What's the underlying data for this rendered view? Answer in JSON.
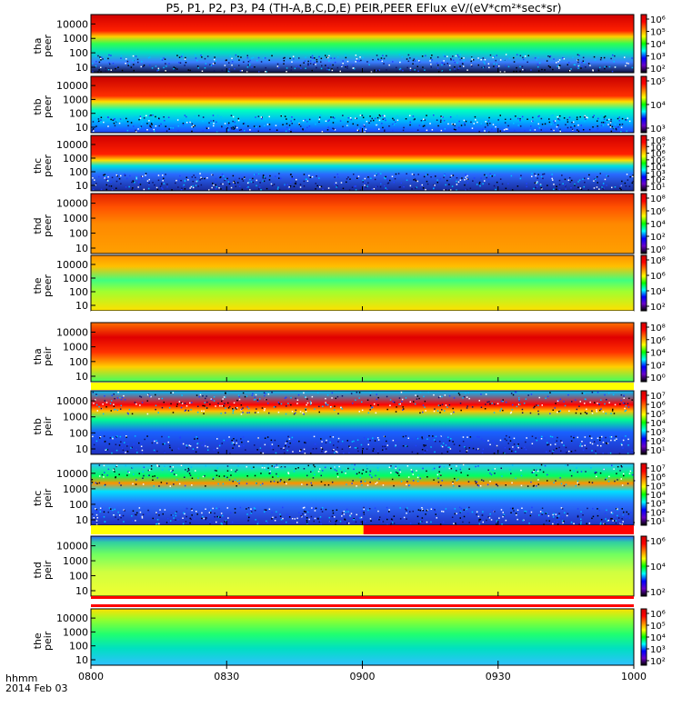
{
  "title": "P5, P1, P2, P3, P4 (TH-A,B,C,D,E) PEIR,PEER EFlux eV/(eV*cm²*sec*sr)",
  "footer": {
    "label": "hhmm",
    "date": "2014 Feb 03"
  },
  "chart_data": {
    "type": "heatmap",
    "x_ticks": [
      "0800",
      "0830",
      "0900",
      "0930",
      "1000"
    ],
    "x_range": [
      "08:00",
      "10:00"
    ],
    "y_scale": "log",
    "y_ticks": [
      "10",
      "100",
      "1000",
      "10000"
    ],
    "z_scale": "log",
    "colormap": [
      "#000000",
      "#6a00c8",
      "#0000ff",
      "#00ffff",
      "#00ff00",
      "#ffff00",
      "#ff8000",
      "#ff0000",
      "#d00000"
    ],
    "panels": [
      {
        "probe": "tha",
        "species": "peer",
        "label_top": "tha",
        "label_bottom": "peer",
        "y_ticks": [
          "10",
          "100",
          "1000",
          "10000"
        ],
        "color_ticks": [
          "10⁶",
          "10⁵",
          "10⁴",
          "10³",
          "10²"
        ]
      },
      {
        "probe": "thb",
        "species": "peer",
        "label_top": "thb",
        "label_bottom": "peer",
        "y_ticks": [
          "10",
          "100",
          "1000",
          "10000"
        ],
        "color_ticks": [
          "10⁵",
          "10⁴",
          "10³"
        ]
      },
      {
        "probe": "thc",
        "species": "peer",
        "label_top": "thc",
        "label_bottom": "peer",
        "y_ticks": [
          "10",
          "100",
          "1000",
          "10000"
        ],
        "color_ticks": [
          "10⁸",
          "10⁷",
          "10⁶",
          "10⁵",
          "10⁴",
          "10³",
          "10²",
          "10¹"
        ]
      },
      {
        "probe": "thd",
        "species": "peer",
        "label_top": "thd",
        "label_bottom": "peer",
        "y_ticks": [
          "10",
          "100",
          "1000",
          "10000"
        ],
        "color_ticks": [
          "10⁸",
          "10⁶",
          "10⁴",
          "10²",
          "10⁰"
        ]
      },
      {
        "probe": "the",
        "species": "peer",
        "label_top": "the",
        "label_bottom": "peer",
        "y_ticks": [
          "10",
          "100",
          "1000",
          "10000"
        ],
        "color_ticks": [
          "10⁸",
          "10⁶",
          "10⁴",
          "10²"
        ]
      },
      {
        "probe": "tha",
        "species": "peir",
        "label_top": "tha",
        "label_bottom": "peir",
        "y_ticks": [
          "10",
          "100",
          "1000",
          "10000"
        ],
        "color_ticks": [
          "10⁸",
          "10⁶",
          "10⁴",
          "10²",
          "10⁰"
        ]
      },
      {
        "probe": "thb",
        "species": "peir",
        "label_top": "thb",
        "label_bottom": "peir",
        "y_ticks": [
          "10",
          "100",
          "1000",
          "10000"
        ],
        "color_ticks": [
          "10⁷",
          "10⁶",
          "10⁵",
          "10⁴",
          "10³",
          "10²",
          "10¹"
        ]
      },
      {
        "probe": "thc",
        "species": "peir",
        "label_top": "thc",
        "label_bottom": "peir",
        "y_ticks": [
          "10",
          "100",
          "1000",
          "10000"
        ],
        "color_ticks": [
          "10⁷",
          "10⁶",
          "10⁵",
          "10⁴",
          "10³",
          "10²",
          "10¹"
        ]
      },
      {
        "probe": "thd",
        "species": "peir",
        "label_top": "thd",
        "label_bottom": "peir",
        "y_ticks": [
          "10",
          "100",
          "1000",
          "10000"
        ],
        "color_ticks": [
          "10⁶",
          "10⁴",
          "10²"
        ]
      },
      {
        "probe": "the",
        "species": "peir",
        "label_top": "the",
        "label_bottom": "peir",
        "y_ticks": [
          "10",
          "100",
          "1000",
          "10000"
        ],
        "color_ticks": [
          "10⁶",
          "10⁵",
          "10⁴",
          "10³",
          "10²"
        ]
      }
    ]
  }
}
